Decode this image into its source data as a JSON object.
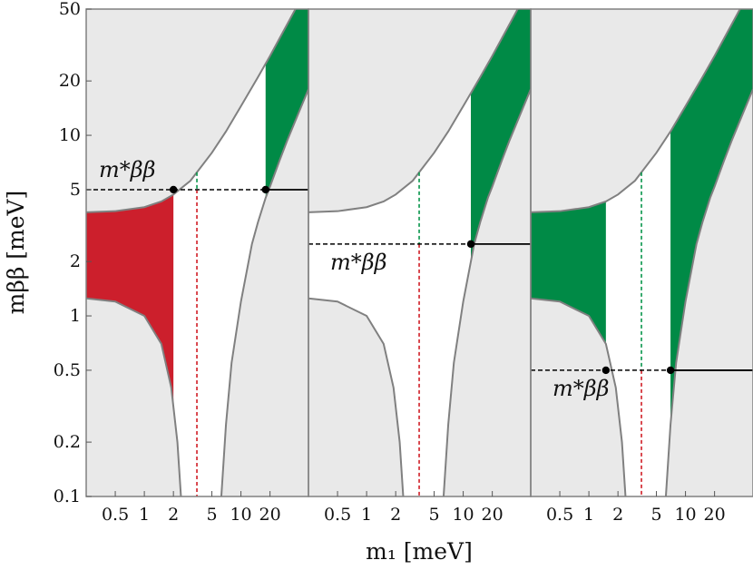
{
  "chart_data": {
    "type": "area",
    "x_axis": {
      "label": "m₁ [meV]",
      "scale": "log",
      "range": [
        0.25,
        50
      ],
      "tick_values": [
        0.5,
        1,
        2,
        5,
        10,
        20
      ],
      "tick_labels": [
        "0.5",
        "1",
        "2",
        "5",
        "10",
        "20"
      ]
    },
    "y_axis": {
      "label": "mββ [meV]",
      "scale": "log",
      "range": [
        0.1,
        50
      ],
      "tick_values": [
        0.1,
        0.2,
        0.5,
        1,
        2,
        5,
        10,
        20,
        50
      ],
      "tick_labels": [
        "0.1",
        "0.2",
        "0.5",
        "1",
        "2",
        "5",
        "10",
        "20",
        "50"
      ]
    },
    "grid": false,
    "panels": [
      {
        "annotation": "m*ββ",
        "upper_band": {
          "x": [
            0.25,
            0.5,
            1,
            1.5,
            2,
            3,
            5,
            7,
            10,
            15,
            20,
            30,
            50
          ],
          "y": [
            3.75,
            3.8,
            4.0,
            4.3,
            4.7,
            5.6,
            8.0,
            10.5,
            14.5,
            21,
            27.5,
            41,
            68
          ]
        },
        "lower_band": {
          "x": [
            0.25,
            0.5,
            1,
            1.5,
            1.9,
            2.2,
            2.5
          ],
          "y": [
            1.25,
            1.2,
            1.0,
            0.7,
            0.4,
            0.2,
            0.07
          ]
        },
        "right_band": {
          "x": [
            6,
            7,
            8,
            10,
            13,
            15,
            18,
            20,
            25,
            30,
            40,
            50
          ],
          "y": [
            0.07,
            0.25,
            0.55,
            1.2,
            2.5,
            3.3,
            4.5,
            5.2,
            7.2,
            9.3,
            13.5,
            18
          ]
        },
        "shaded_regions": [
          {
            "color": "red",
            "x": [
              0.25,
              2.0
            ]
          },
          {
            "color": "green",
            "x": [
              18,
              50
            ],
            "region": "upper"
          }
        ],
        "dashed_lines": [
          {
            "color": "red",
            "x": 3.5
          },
          {
            "color": "green",
            "x": 3.5
          }
        ],
        "threshold": {
          "y": 5,
          "dashed_x": [
            0.25,
            18
          ],
          "solid_x": [
            18,
            50
          ]
        },
        "points": [
          {
            "x": 2.0,
            "y": 5.0
          },
          {
            "x": 18,
            "y": 5.0
          }
        ]
      },
      {
        "annotation": "m*ββ",
        "upper_band": {
          "x": [
            0.25,
            0.5,
            1,
            1.5,
            2,
            3,
            5,
            7,
            10,
            15,
            20,
            30,
            50
          ],
          "y": [
            3.75,
            3.8,
            4.0,
            4.3,
            4.7,
            5.6,
            8.0,
            10.5,
            14.5,
            21,
            27.5,
            41,
            68
          ]
        },
        "lower_band": {
          "x": [
            0.25,
            0.5,
            1,
            1.5,
            1.9,
            2.2,
            2.5
          ],
          "y": [
            1.25,
            1.2,
            1.0,
            0.7,
            0.4,
            0.2,
            0.07
          ]
        },
        "right_band": {
          "x": [
            6,
            7,
            8,
            10,
            13,
            15,
            18,
            20,
            25,
            30,
            40,
            50
          ],
          "y": [
            0.07,
            0.25,
            0.55,
            1.2,
            2.5,
            3.3,
            4.5,
            5.2,
            7.2,
            9.3,
            13.5,
            18
          ]
        },
        "shaded_regions": [
          {
            "color": "green",
            "x": [
              12,
              50
            ],
            "region": "upper"
          }
        ],
        "dashed_lines": [
          {
            "color": "red",
            "x": 3.5
          },
          {
            "color": "green",
            "x": 3.5
          }
        ],
        "threshold": {
          "y": 2.5,
          "dashed_x": [
            0.25,
            12
          ],
          "solid_x": [
            12,
            50
          ]
        },
        "points": [
          {
            "x": 12,
            "y": 2.5
          }
        ]
      },
      {
        "annotation": "m*ββ",
        "upper_band": {
          "x": [
            0.25,
            0.5,
            1,
            1.5,
            2,
            3,
            5,
            7,
            10,
            15,
            20,
            30,
            50
          ],
          "y": [
            3.75,
            3.8,
            4.0,
            4.3,
            4.7,
            5.6,
            8.0,
            10.5,
            14.5,
            21,
            27.5,
            41,
            68
          ]
        },
        "lower_band": {
          "x": [
            0.25,
            0.5,
            1,
            1.5,
            1.9,
            2.2,
            2.5
          ],
          "y": [
            1.25,
            1.2,
            1.0,
            0.7,
            0.4,
            0.2,
            0.07
          ]
        },
        "right_band": {
          "x": [
            6,
            7,
            8,
            10,
            13,
            15,
            18,
            20,
            25,
            30,
            40,
            50
          ],
          "y": [
            0.07,
            0.25,
            0.55,
            1.2,
            2.5,
            3.3,
            4.5,
            5.2,
            7.2,
            9.3,
            13.5,
            18
          ]
        },
        "shaded_regions": [
          {
            "color": "green",
            "x": [
              0.25,
              1.5
            ]
          },
          {
            "color": "green",
            "x": [
              7,
              50
            ],
            "region": "upper"
          }
        ],
        "dashed_lines": [
          {
            "color": "red",
            "x": 3.5
          },
          {
            "color": "green",
            "x": 3.5
          }
        ],
        "threshold": {
          "y": 0.5,
          "dashed_x": [
            0.25,
            7
          ],
          "solid_x": [
            7,
            50
          ]
        },
        "points": [
          {
            "x": 1.5,
            "y": 0.5
          },
          {
            "x": 7,
            "y": 0.5
          }
        ]
      }
    ],
    "colors": {
      "background": "#e9e9e9",
      "allowed": "#ffffff",
      "boundary": "#808080",
      "red": "#cc1f2c",
      "green": "#008a46",
      "dash_red": "#d01d25",
      "dash_green": "#06954a",
      "threshold": "#000000"
    }
  }
}
